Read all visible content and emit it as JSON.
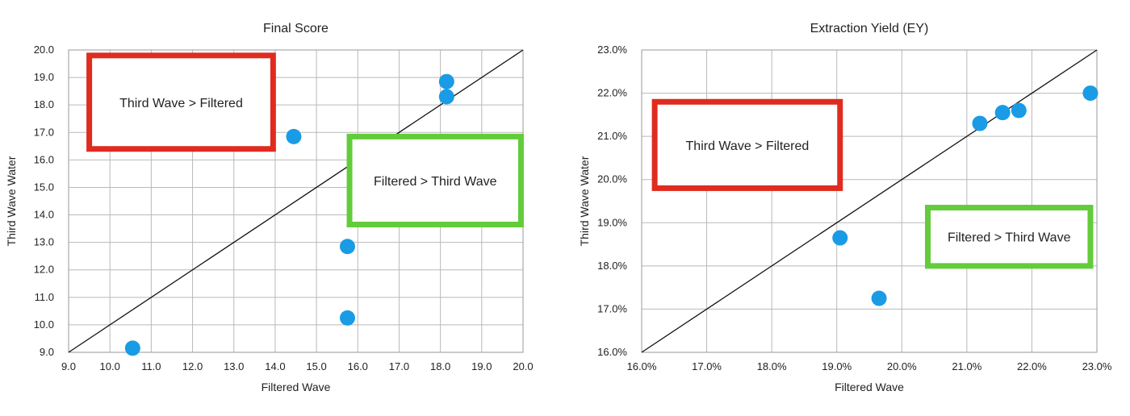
{
  "chart_data": [
    {
      "type": "scatter",
      "title": "Final Score",
      "xlabel": "Filtered Wave",
      "ylabel": "Third Wave Water",
      "xlim": [
        9.0,
        20.0
      ],
      "ylim": [
        9.0,
        20.0
      ],
      "x_ticks": [
        "9.0",
        "10.0",
        "11.0",
        "12.0",
        "13.0",
        "14.0",
        "15.0",
        "16.0",
        "17.0",
        "18.0",
        "19.0",
        "20.0"
      ],
      "y_ticks": [
        "9.0",
        "10.0",
        "11.0",
        "12.0",
        "13.0",
        "14.0",
        "15.0",
        "16.0",
        "17.0",
        "18.0",
        "19.0",
        "20.0"
      ],
      "grid": true,
      "point_color": "#1a9be6",
      "points": [
        {
          "x": 10.55,
          "y": 9.15
        },
        {
          "x": 14.45,
          "y": 16.85
        },
        {
          "x": 15.75,
          "y": 12.85
        },
        {
          "x": 15.75,
          "y": 10.25
        },
        {
          "x": 18.15,
          "y": 18.85
        },
        {
          "x": 18.15,
          "y": 18.3
        }
      ],
      "reference_line": {
        "from": [
          9.0,
          9.0
        ],
        "to": [
          20.0,
          20.0
        ]
      },
      "annotations": [
        {
          "text": "Third Wave > Filtered",
          "border_color": "#e02b1f",
          "x0": 9.5,
          "x1": 13.95,
          "y0": 16.4,
          "y1": 19.8
        },
        {
          "text": "Filtered > Third Wave",
          "border_color": "#62cc3a",
          "x0": 15.8,
          "x1": 19.95,
          "y0": 13.65,
          "y1": 16.85
        }
      ]
    },
    {
      "type": "scatter",
      "title": "Extraction Yield (EY)",
      "xlabel": "Filtered Wave",
      "ylabel": "Third Wave Water",
      "xlim": [
        16.0,
        23.0
      ],
      "ylim": [
        16.0,
        23.0
      ],
      "x_ticks": [
        "16.0%",
        "17.0%",
        "18.0%",
        "19.0%",
        "20.0%",
        "21.0%",
        "22.0%",
        "23.0%"
      ],
      "y_ticks": [
        "16.0%",
        "17.0%",
        "18.0%",
        "19.0%",
        "20.0%",
        "21.0%",
        "22.0%",
        "23.0%"
      ],
      "grid": true,
      "point_color": "#1a9be6",
      "points": [
        {
          "x": 19.05,
          "y": 18.65
        },
        {
          "x": 19.65,
          "y": 17.25
        },
        {
          "x": 21.2,
          "y": 21.3
        },
        {
          "x": 21.55,
          "y": 21.55
        },
        {
          "x": 21.8,
          "y": 21.6
        },
        {
          "x": 22.9,
          "y": 22.0
        }
      ],
      "reference_line": {
        "from": [
          16.0,
          16.0
        ],
        "to": [
          23.0,
          23.0
        ]
      },
      "annotations": [
        {
          "text": "Third Wave > Filtered",
          "border_color": "#e02b1f",
          "x0": 16.2,
          "x1": 19.05,
          "y0": 19.8,
          "y1": 21.8
        },
        {
          "text": "Filtered > Third Wave",
          "border_color": "#62cc3a",
          "x0": 20.4,
          "x1": 22.9,
          "y0": 18.0,
          "y1": 19.35
        }
      ]
    }
  ]
}
